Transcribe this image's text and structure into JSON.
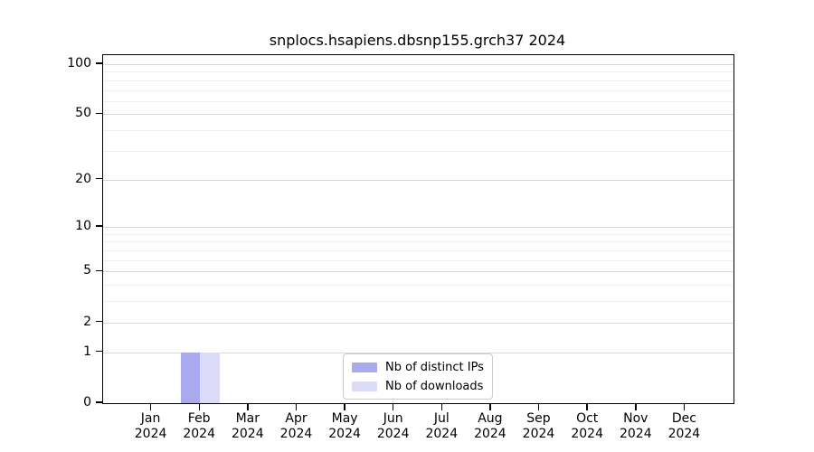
{
  "chart_data": {
    "type": "bar",
    "title": "snplocs.hsapiens.dbsnp155.grch37 2024",
    "categories": [
      "Jan 2024",
      "Feb 2024",
      "Mar 2024",
      "Apr 2024",
      "May 2024",
      "Jun 2024",
      "Jul 2024",
      "Aug 2024",
      "Sep 2024",
      "Oct 2024",
      "Nov 2024",
      "Dec 2024"
    ],
    "series": [
      {
        "name": "Nb of distinct IPs",
        "color": "#a9a9f0",
        "values": [
          0,
          1,
          0,
          0,
          0,
          0,
          0,
          0,
          0,
          0,
          0,
          0
        ]
      },
      {
        "name": "Nb of downloads",
        "color": "#dbdbf8",
        "values": [
          0,
          1,
          0,
          0,
          0,
          0,
          0,
          0,
          0,
          0,
          0,
          0
        ]
      }
    ],
    "xlabel": "",
    "ylabel": "",
    "y_scale": "log10(1+x)",
    "y_axis_max": 113,
    "y_ticks_major": [
      100,
      50,
      20,
      10,
      5,
      2,
      1,
      0
    ],
    "y_gridlines_minor": [
      90,
      80,
      70,
      60,
      40,
      30,
      9,
      8,
      7,
      6,
      4,
      3
    ],
    "bar_width_fraction": 0.4,
    "legend_position": "lower center",
    "grid": true,
    "colors": {
      "major_grid": "#d8d8d8",
      "minor_grid": "#efefef",
      "spine": "#000000",
      "legend_border": "#cccccc",
      "background": "#ffffff"
    }
  }
}
